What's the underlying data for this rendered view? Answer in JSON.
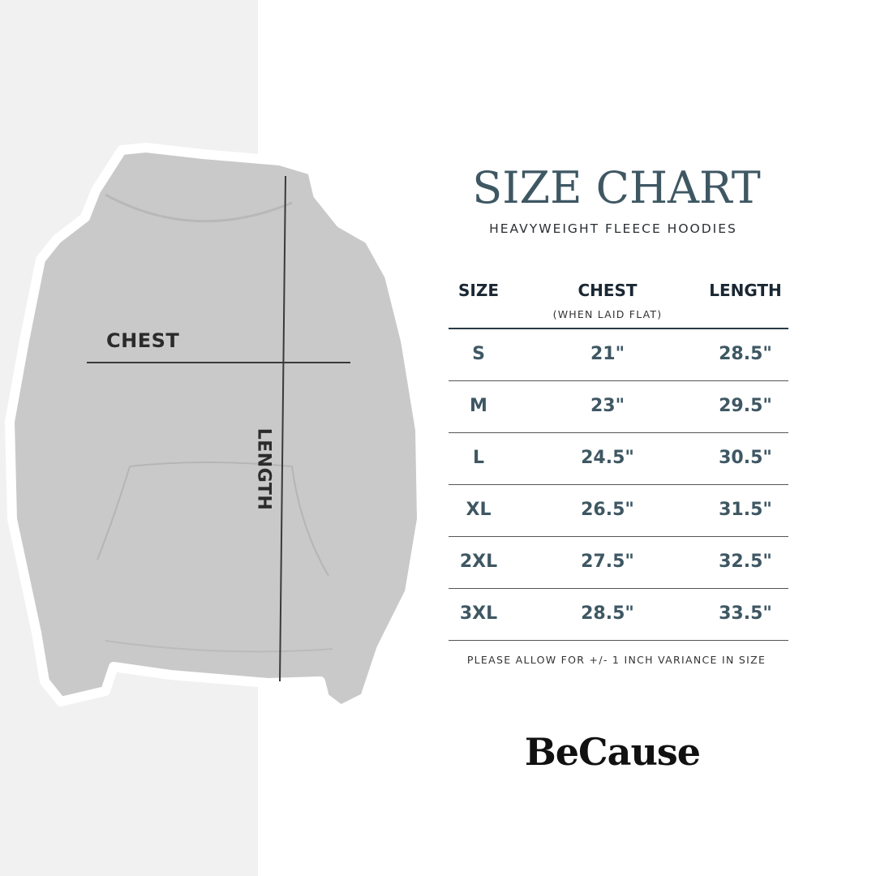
{
  "image": {
    "chest_label": "CHEST",
    "length_label": "LENGTH",
    "garment_color": "#c9c9c9"
  },
  "header": {
    "title": "SIZE CHART",
    "subtitle": "HEAVYWEIGHT FLEECE HOODIES"
  },
  "table": {
    "columns": [
      {
        "label": "SIZE"
      },
      {
        "label": "CHEST",
        "note": "(WHEN LAID FLAT)"
      },
      {
        "label": "LENGTH"
      }
    ],
    "rows": [
      {
        "size": "S",
        "chest": "21\"",
        "length": "28.5\""
      },
      {
        "size": "M",
        "chest": "23\"",
        "length": "29.5\""
      },
      {
        "size": "L",
        "chest": "24.5\"",
        "length": "30.5\""
      },
      {
        "size": "XL",
        "chest": "26.5\"",
        "length": "31.5\""
      },
      {
        "size": "2XL",
        "chest": "27.5\"",
        "length": "32.5\""
      },
      {
        "size": "3XL",
        "chest": "28.5\"",
        "length": "33.5\""
      }
    ]
  },
  "footnote": "PLEASE ALLOW FOR +/- 1 INCH VARIANCE IN SIZE",
  "brand": {
    "logo_text": "BeCause"
  },
  "colors": {
    "title": "#3e5763",
    "header": "#1a2733",
    "values": "#3e5763",
    "left_panel": "#f1f1f1"
  }
}
